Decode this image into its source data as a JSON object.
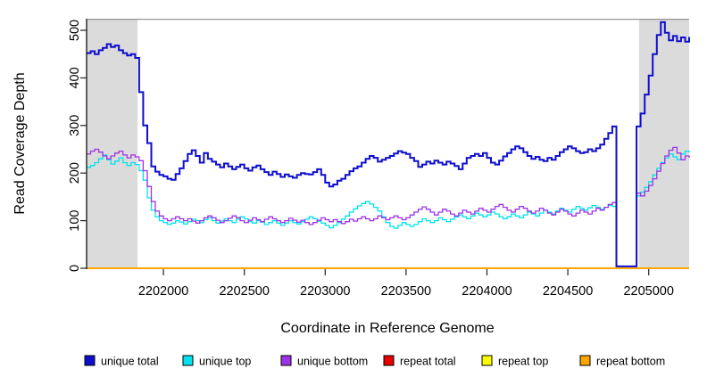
{
  "chart_data": {
    "type": "line",
    "title": "",
    "xlabel": "Coordinate in Reference Genome",
    "ylabel": "Read Coverage Depth",
    "xlim": [
      2201525,
      2205250
    ],
    "ylim": [
      0,
      524
    ],
    "x_ticks": [
      2202000,
      2202500,
      2203000,
      2203500,
      2204000,
      2204500,
      2205000
    ],
    "y_ticks": [
      0,
      100,
      200,
      300,
      400,
      500
    ],
    "grid": false,
    "legend_position": "bottom",
    "frame_top_color": "#8a8a8a",
    "shade_color": "#dbdbdb",
    "shaded_regions": [
      {
        "start": 2201525,
        "end": 2201840
      },
      {
        "start": 2204940,
        "end": 2205250
      }
    ],
    "x_start": 2201525,
    "x_step": 25,
    "series": [
      {
        "name": "unique total",
        "color": "#0e0ece",
        "width": 2,
        "values": [
          452,
          456,
          450,
          458,
          463,
          471,
          465,
          468,
          458,
          452,
          447,
          450,
          442,
          370,
          300,
          263,
          214,
          203,
          196,
          193,
          188,
          186,
          198,
          210,
          225,
          240,
          248,
          236,
          222,
          242,
          230,
          224,
          218,
          212,
          220,
          214,
          208,
          213,
          218,
          210,
          205,
          212,
          216,
          208,
          202,
          196,
          203,
          198,
          192,
          197,
          193,
          190,
          196,
          200,
          198,
          197,
          202,
          208,
          196,
          180,
          172,
          176,
          184,
          188,
          196,
          204,
          210,
          214,
          222,
          230,
          236,
          232,
          224,
          228,
          232,
          236,
          241,
          246,
          243,
          240,
          232,
          225,
          213,
          218,
          224,
          220,
          226,
          222,
          218,
          224,
          220,
          215,
          208,
          220,
          232,
          236,
          240,
          236,
          242,
          232,
          222,
          218,
          226,
          235,
          242,
          250,
          256,
          252,
          244,
          236,
          230,
          234,
          228,
          225,
          232,
          228,
          236,
          244,
          250,
          256,
          252,
          246,
          242,
          244,
          250,
          246,
          252,
          260,
          272,
          284,
          298,
          4,
          4,
          4,
          4,
          4,
          298,
          325,
          365,
          405,
          450,
          490,
          517,
          495,
          479,
          488,
          477,
          485,
          476,
          486
        ]
      },
      {
        "name": "unique top",
        "color": "#00e3ee",
        "width": 1.3,
        "values": [
          212,
          216,
          222,
          230,
          238,
          228,
          219,
          225,
          232,
          222,
          216,
          222,
          218,
          205,
          185,
          148,
          122,
          108,
          100,
          96,
          92,
          95,
          100,
          97,
          93,
          98,
          103,
          100,
          96,
          102,
          106,
          100,
          95,
          99,
          104,
          100,
          96,
          103,
          108,
          104,
          98,
          95,
          100,
          97,
          92,
          96,
          100,
          95,
          90,
          95,
          100,
          96,
          93,
          98,
          103,
          108,
          104,
          99,
          95,
          90,
          85,
          90,
          96,
          103,
          110,
          118,
          125,
          131,
          136,
          140,
          135,
          128,
          120,
          108,
          96,
          88,
          84,
          90,
          96,
          92,
          88,
          92,
          98,
          104,
          100,
          96,
          100,
          106,
          102,
          98,
          103,
          108,
          112,
          108,
          104,
          110,
          116,
          112,
          108,
          112,
          118,
          114,
          108,
          104,
          108,
          114,
          110,
          106,
          112,
          118,
          114,
          110,
          116,
          122,
          118,
          114,
          120,
          126,
          122,
          118,
          124,
          130,
          126,
          122,
          127,
          132,
          128,
          124,
          128,
          132,
          130,
          4,
          4,
          4,
          4,
          4,
          152,
          160,
          170,
          182,
          196,
          210,
          222,
          232,
          240,
          234,
          228,
          240,
          246,
          243
        ]
      },
      {
        "name": "unique bottom",
        "color": "#9d33e6",
        "width": 1.3,
        "values": [
          240,
          246,
          250,
          244,
          236,
          230,
          236,
          242,
          246,
          238,
          232,
          238,
          234,
          226,
          205,
          172,
          140,
          120,
          110,
          104,
          100,
          104,
          108,
          104,
          100,
          104,
          99,
          95,
          100,
          106,
          110,
          106,
          101,
          96,
          100,
          105,
          110,
          106,
          100,
          96,
          101,
          106,
          102,
          98,
          103,
          108,
          104,
          100,
          96,
          100,
          105,
          101,
          97,
          101,
          96,
          92,
          96,
          101,
          106,
          102,
          98,
          102,
          98,
          94,
          98,
          103,
          99,
          104,
          108,
          104,
          100,
          104,
          110,
          106,
          102,
          106,
          110,
          106,
          102,
          106,
          112,
          118,
          124,
          129,
          124,
          118,
          112,
          118,
          124,
          120,
          114,
          110,
          116,
          122,
          118,
          114,
          120,
          126,
          122,
          118,
          124,
          130,
          134,
          128,
          122,
          118,
          124,
          130,
          126,
          120,
          116,
          120,
          126,
          122,
          116,
          112,
          118,
          124,
          120,
          114,
          110,
          116,
          122,
          118,
          114,
          120,
          126,
          122,
          128,
          134,
          138,
          4,
          4,
          4,
          4,
          4,
          158,
          152,
          162,
          174,
          188,
          204,
          220,
          236,
          248,
          254,
          242,
          228,
          236,
          232
        ]
      },
      {
        "name": "repeat total",
        "color": "#e60000",
        "width": 1.5,
        "constant": 0
      },
      {
        "name": "repeat top",
        "color": "#fdfd00",
        "width": 1.5,
        "constant": 0
      },
      {
        "name": "repeat bottom",
        "color": "#ffa500",
        "width": 2,
        "constant": 0
      }
    ]
  }
}
